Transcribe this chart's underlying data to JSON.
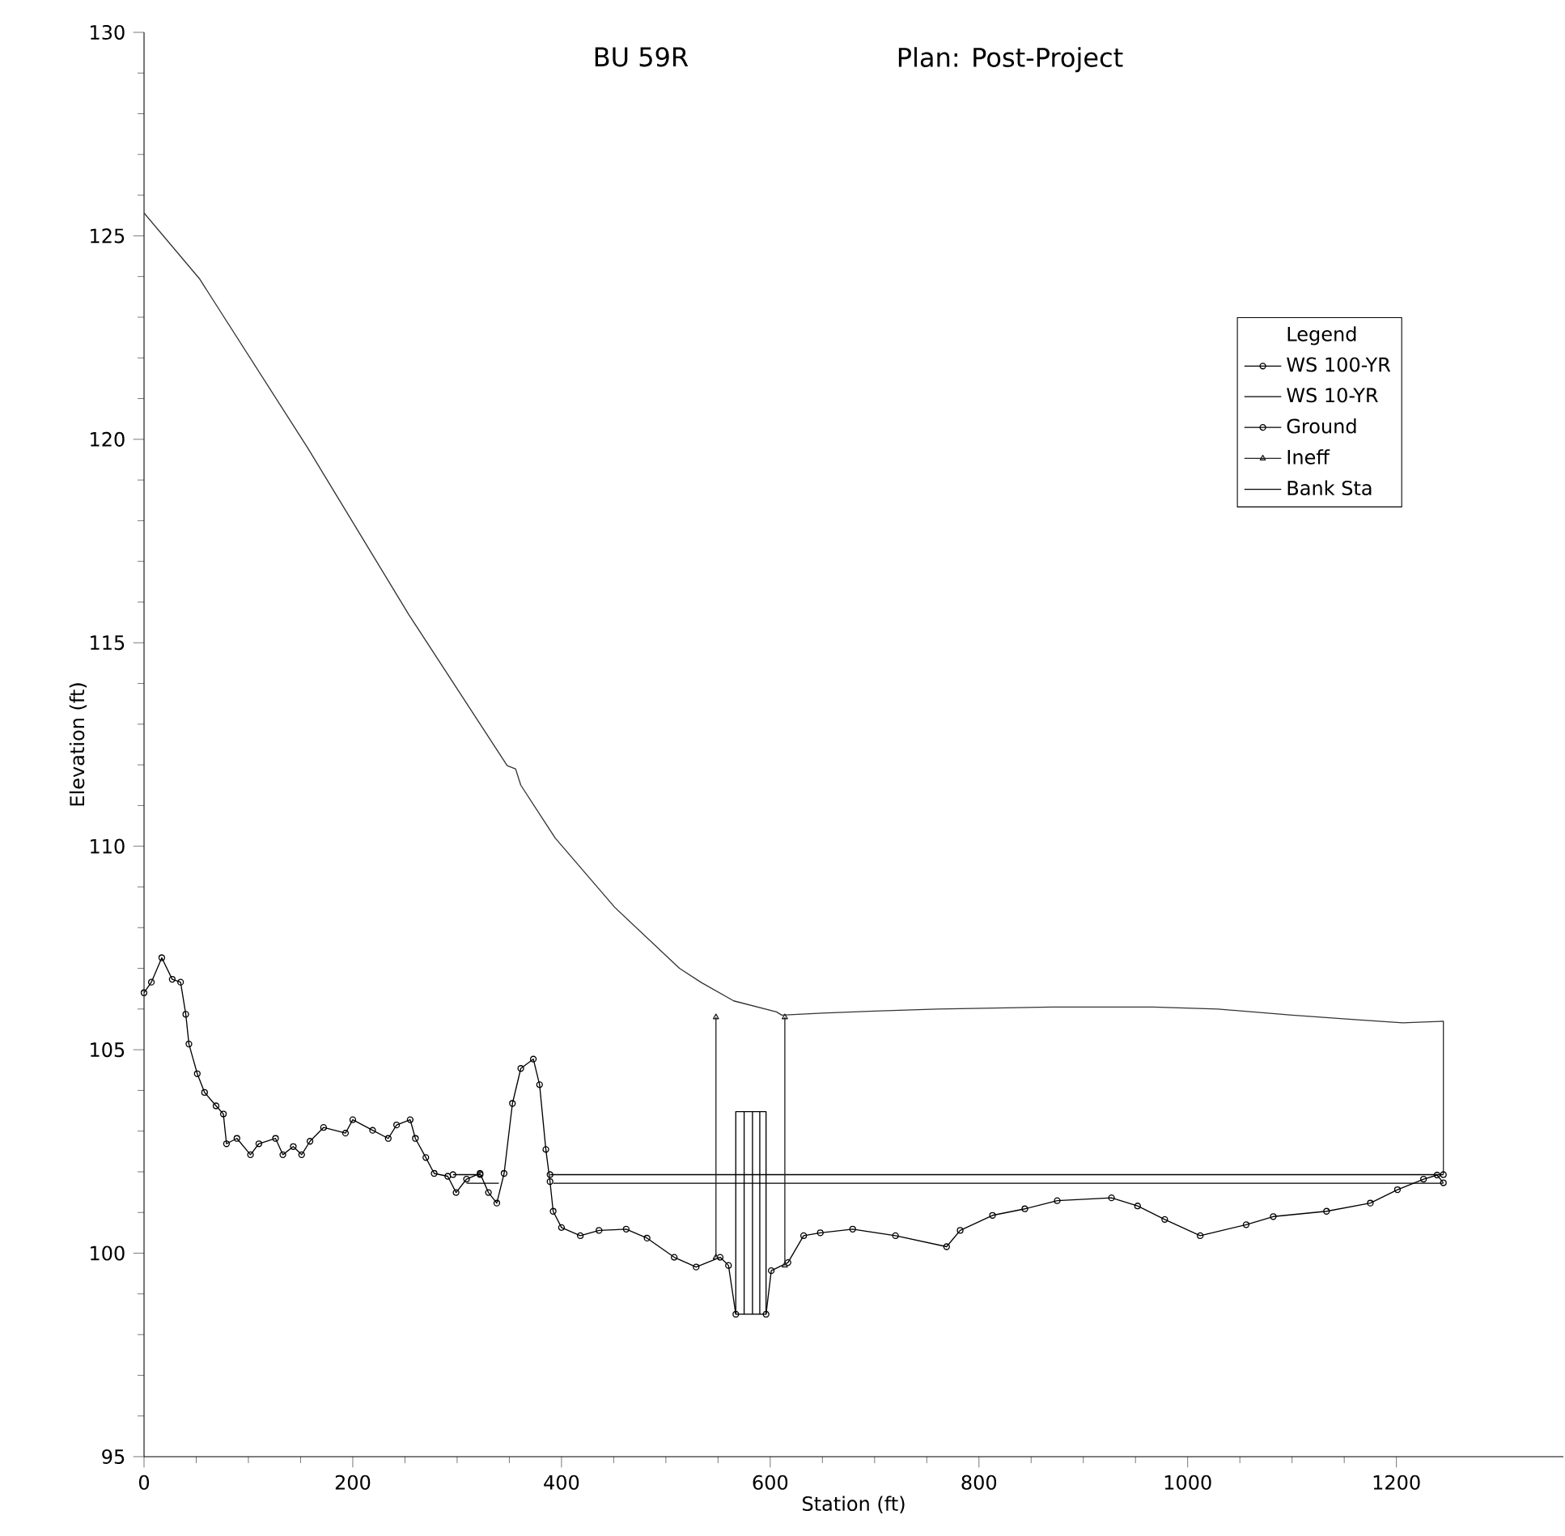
{
  "chart_data": {
    "type": "line",
    "title": "BU 59R",
    "subtitle": "Plan: Post-Project",
    "xlabel": "Station (ft)",
    "ylabel": "Elevation (ft)",
    "legend_title": "Legend",
    "xlim": [
      0,
      1360
    ],
    "ylim": [
      95,
      130
    ],
    "xticks": [
      0,
      200,
      400,
      600,
      800,
      1000,
      1200
    ],
    "yticks": [
      95,
      100,
      105,
      110,
      115,
      120,
      125,
      130
    ],
    "grid": false,
    "legend": "right",
    "series": [
      {
        "color": "#333333",
        "marker": "none",
        "x": [
          0,
          53,
          157,
          254,
          348,
          356,
          361,
          394,
          451,
          513,
          534,
          565,
          606,
          611,
          650,
          700,
          760,
          870,
          967,
          1029,
          1100,
          1160,
          1206,
          1245,
          1245
        ],
        "values": [
          125.56,
          123.95,
          119.78,
          115.68,
          111.98,
          111.9,
          111.5,
          110.2,
          108.5,
          107.0,
          106.65,
          106.2,
          105.93,
          105.85,
          105.9,
          105.95,
          106.0,
          106.05,
          106.05,
          106.0,
          105.85,
          105.74,
          105.66,
          105.7,
          101.93
        ]
      },
      {
        "name": "WS 100-YR",
        "color": "#000000",
        "marker": "circle",
        "x": [
          296,
          322,
          null,
          389,
          1245
        ],
        "values": [
          101.93,
          101.93,
          null,
          101.93,
          101.93
        ]
      },
      {
        "name": "WS 10-YR",
        "color": "#000000",
        "marker": "none",
        "x": [
          309,
          340,
          null,
          392,
          1245
        ],
        "values": [
          101.72,
          101.72,
          null,
          101.72,
          101.72
        ]
      },
      {
        "name": "Ground",
        "color": "#000000",
        "marker": "circle",
        "x": [
          0,
          7,
          17,
          27,
          35,
          40,
          43,
          51,
          58,
          69,
          76,
          79,
          89,
          102,
          110,
          126,
          133,
          143,
          151,
          159,
          172,
          193,
          200,
          219,
          234,
          242,
          255,
          260,
          270,
          278,
          291,
          299,
          309,
          322,
          330,
          338,
          345,
          353,
          361,
          373,
          379,
          385,
          389,
          392,
          400,
          418,
          436,
          462,
          482,
          508,
          529,
          552,
          560,
          567,
          596,
          601,
          617,
          632,
          648,
          679,
          720,
          769,
          782,
          813,
          844,
          875,
          927,
          952,
          978,
          1012,
          1056,
          1082,
          1133,
          1175,
          1201,
          1226,
          1239,
          1245
        ],
        "values": [
          106.4,
          106.66,
          107.26,
          106.73,
          106.66,
          105.87,
          105.14,
          104.41,
          103.95,
          103.62,
          103.42,
          102.69,
          102.82,
          102.42,
          102.69,
          102.82,
          102.42,
          102.62,
          102.42,
          102.75,
          103.09,
          102.95,
          103.28,
          103.02,
          102.82,
          103.15,
          103.28,
          102.82,
          102.35,
          101.96,
          101.89,
          101.49,
          101.82,
          101.96,
          101.49,
          101.23,
          101.96,
          103.68,
          104.54,
          104.77,
          104.14,
          102.55,
          101.76,
          101.03,
          100.63,
          100.43,
          100.56,
          100.59,
          100.37,
          99.9,
          99.66,
          99.9,
          99.7,
          98.5,
          98.5,
          99.57,
          99.77,
          100.43,
          100.5,
          100.59,
          100.43,
          100.16,
          100.56,
          100.93,
          101.09,
          101.29,
          101.36,
          101.16,
          100.83,
          100.43,
          100.7,
          100.9,
          101.03,
          101.23,
          101.56,
          101.82,
          101.92,
          101.73
        ]
      },
      {
        "name": "Ineff",
        "color": "#222222",
        "marker": "triangle",
        "x": [
          548,
          548,
          null,
          614,
          614
        ],
        "values": [
          99.9,
          105.8,
          null,
          99.7,
          105.8
        ]
      },
      {
        "name": "Bank Sta",
        "color": "#000000",
        "marker": "none",
        "x": [
          567,
          567,
          596,
          596,
          null,
          575,
          575,
          null,
          583,
          583,
          null,
          590,
          590
        ],
        "values": [
          98.5,
          103.48,
          103.48,
          98.5,
          null,
          98.5,
          103.48,
          null,
          98.5,
          103.48,
          null,
          98.5,
          103.48
        ]
      }
    ]
  }
}
